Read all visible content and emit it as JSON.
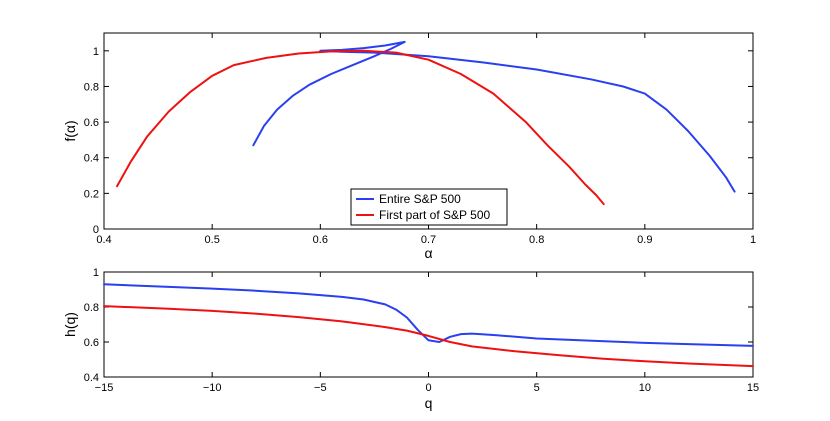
{
  "chart_data": [
    {
      "type": "line",
      "title": "",
      "xlabel": "α",
      "ylabel": "f(α)",
      "xlim": [
        0.4,
        1.0
      ],
      "ylim": [
        0,
        1.1
      ],
      "xticks": [
        0.4,
        0.5,
        0.6,
        0.7,
        0.8,
        0.9,
        1.0
      ],
      "xtick_labels": [
        "0.4",
        "0.5",
        "0.6",
        "0.7",
        "0.8",
        "0.9",
        "1"
      ],
      "yticks": [
        0,
        0.2,
        0.4,
        0.6,
        0.8,
        1.0
      ],
      "ytick_labels": [
        "0",
        "0.2",
        "0.4",
        "0.6",
        "0.8",
        "1"
      ],
      "grid": false,
      "legend_position": "bottom-center",
      "series": [
        {
          "name": "Entire S&P 500",
          "color": "#2a3ff0",
          "x": [
            0.538,
            0.548,
            0.56,
            0.575,
            0.59,
            0.61,
            0.63,
            0.65,
            0.665,
            0.678,
            0.66,
            0.64,
            0.62,
            0.6,
            0.62,
            0.65,
            0.7,
            0.75,
            0.8,
            0.85,
            0.88,
            0.9,
            0.92,
            0.94,
            0.96,
            0.975,
            0.983
          ],
          "y": [
            0.47,
            0.58,
            0.67,
            0.75,
            0.81,
            0.87,
            0.92,
            0.97,
            1.01,
            1.05,
            1.03,
            1.015,
            1.005,
            1.0,
            0.995,
            0.99,
            0.97,
            0.935,
            0.895,
            0.84,
            0.8,
            0.76,
            0.67,
            0.55,
            0.41,
            0.29,
            0.21
          ]
        },
        {
          "name": "First part of S&P 500",
          "color": "#ee1111",
          "x": [
            0.412,
            0.425,
            0.44,
            0.46,
            0.48,
            0.5,
            0.52,
            0.55,
            0.58,
            0.61,
            0.64,
            0.67,
            0.7,
            0.73,
            0.76,
            0.79,
            0.81,
            0.83,
            0.845,
            0.855,
            0.862
          ],
          "y": [
            0.24,
            0.38,
            0.52,
            0.66,
            0.77,
            0.86,
            0.92,
            0.96,
            0.985,
            0.997,
            1.0,
            0.99,
            0.95,
            0.87,
            0.76,
            0.6,
            0.47,
            0.35,
            0.25,
            0.19,
            0.14
          ]
        }
      ]
    },
    {
      "type": "line",
      "title": "",
      "xlabel": "q",
      "ylabel": "h(q)",
      "xlim": [
        -15,
        15
      ],
      "ylim": [
        0.4,
        1.0
      ],
      "xticks": [
        -15,
        -10,
        -5,
        0,
        5,
        10,
        15
      ],
      "xtick_labels": [
        "−15",
        "−10",
        "−5",
        "0",
        "5",
        "10",
        "15"
      ],
      "yticks": [
        0.4,
        0.6,
        0.8,
        1.0
      ],
      "ytick_labels": [
        "0.4",
        "0.6",
        "0.8",
        "1"
      ],
      "grid": false,
      "series": [
        {
          "name": "Entire S&P 500",
          "color": "#2a3ff0",
          "x": [
            -15,
            -12,
            -10,
            -8,
            -6,
            -4,
            -3,
            -2,
            -1.5,
            -1,
            -0.5,
            0,
            0.5,
            1,
            1.5,
            2,
            3,
            5,
            8,
            10,
            12,
            15
          ],
          "y": [
            0.93,
            0.915,
            0.905,
            0.893,
            0.878,
            0.858,
            0.843,
            0.815,
            0.785,
            0.74,
            0.67,
            0.61,
            0.6,
            0.63,
            0.645,
            0.648,
            0.64,
            0.62,
            0.605,
            0.595,
            0.588,
            0.578
          ]
        },
        {
          "name": "First part of S&P 500",
          "color": "#ee1111",
          "x": [
            -15,
            -12,
            -10,
            -8,
            -6,
            -4,
            -2,
            -1,
            0,
            1,
            2,
            4,
            6,
            8,
            10,
            12,
            15
          ],
          "y": [
            0.805,
            0.79,
            0.778,
            0.762,
            0.742,
            0.718,
            0.685,
            0.665,
            0.635,
            0.6,
            0.575,
            0.547,
            0.525,
            0.505,
            0.49,
            0.477,
            0.462
          ]
        }
      ]
    }
  ]
}
